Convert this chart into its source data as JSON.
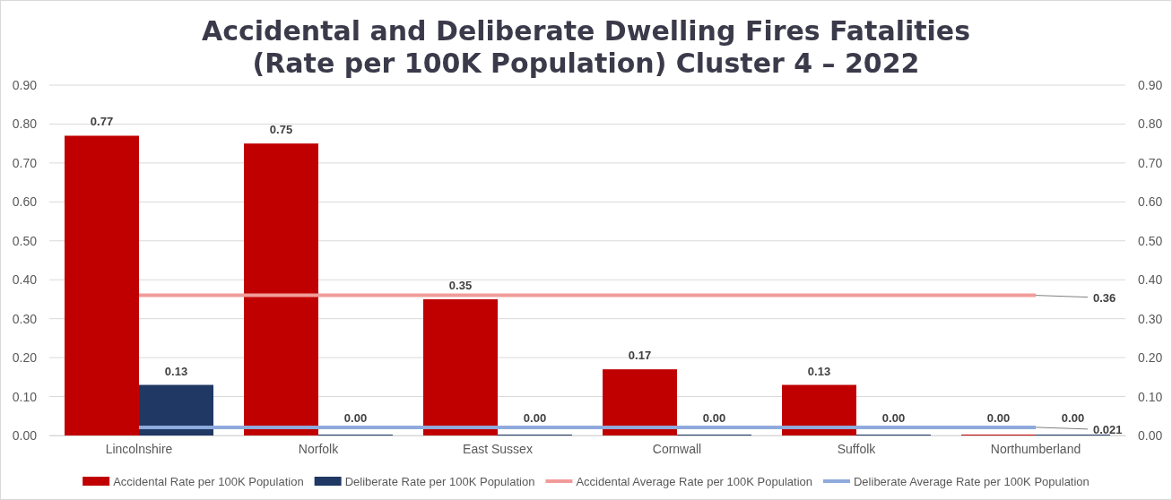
{
  "chart_data": {
    "type": "bar",
    "title": "Accidental and Deliberate Dwelling Fires Fatalities (Rate per 100K Population) Cluster 4 – 2022",
    "categories": [
      "Lincolnshire",
      "Norfolk",
      "East Sussex",
      "Cornwall",
      "Suffolk",
      "Northumberland"
    ],
    "series": [
      {
        "name": "Accidental Rate per 100K Population",
        "color": "#c00000",
        "values": [
          0.77,
          0.75,
          0.35,
          0.17,
          0.13,
          0.0
        ],
        "value_labels": [
          "0.77",
          "0.75",
          "0.35",
          "0.17",
          "0.13",
          "0.00"
        ]
      },
      {
        "name": "Deliberate Rate per 100K Population",
        "color": "#1f3864",
        "values": [
          0.13,
          0.0,
          0.0,
          0.0,
          0.0,
          0.0
        ],
        "value_labels": [
          "0.13",
          "0.00",
          "0.00",
          "0.00",
          "0.00",
          "0.00"
        ]
      },
      {
        "name": "Accidental Average Rate per 100K Population",
        "type": "line",
        "color": "#f19c99",
        "values": [
          0.36,
          0.36,
          0.36,
          0.36,
          0.36,
          0.36
        ],
        "value_labels": [
          null,
          null,
          null,
          null,
          null,
          "0.36"
        ]
      },
      {
        "name": "Deliberate Average Rate per 100K Population",
        "type": "line",
        "color": "#8faadc",
        "values": [
          0.021,
          0.021,
          0.021,
          0.021,
          0.021,
          0.021
        ],
        "value_labels": [
          null,
          null,
          null,
          null,
          null,
          "0.021"
        ]
      }
    ],
    "ylim": [
      0,
      0.9
    ],
    "yticks": [
      {
        "value": 0,
        "label": "0.00"
      },
      {
        "value": 0.1,
        "label": "0.10"
      },
      {
        "value": 0.2,
        "label": "0.20"
      },
      {
        "value": 0.3,
        "label": "0.30"
      },
      {
        "value": 0.4,
        "label": "0.40"
      },
      {
        "value": 0.5,
        "label": "0.50"
      },
      {
        "value": 0.6,
        "label": "0.60"
      },
      {
        "value": 0.7,
        "label": "0.70"
      },
      {
        "value": 0.8,
        "label": "0.80"
      },
      {
        "value": 0.9,
        "label": "0.90"
      }
    ],
    "y2lim": [
      0,
      0.9
    ],
    "y2ticks": [
      {
        "value": 0,
        "label": "0.00"
      },
      {
        "value": 0.1,
        "label": "0.10"
      },
      {
        "value": 0.2,
        "label": "0.20"
      },
      {
        "value": 0.3,
        "label": "0.30"
      },
      {
        "value": 0.4,
        "label": "0.40"
      },
      {
        "value": 0.5,
        "label": "0.50"
      },
      {
        "value": 0.6,
        "label": "0.60"
      },
      {
        "value": 0.7,
        "label": "0.70"
      },
      {
        "value": 0.8,
        "label": "0.80"
      },
      {
        "value": 0.9,
        "label": "0.90"
      }
    ],
    "grid": "y",
    "legend": "bottom"
  }
}
